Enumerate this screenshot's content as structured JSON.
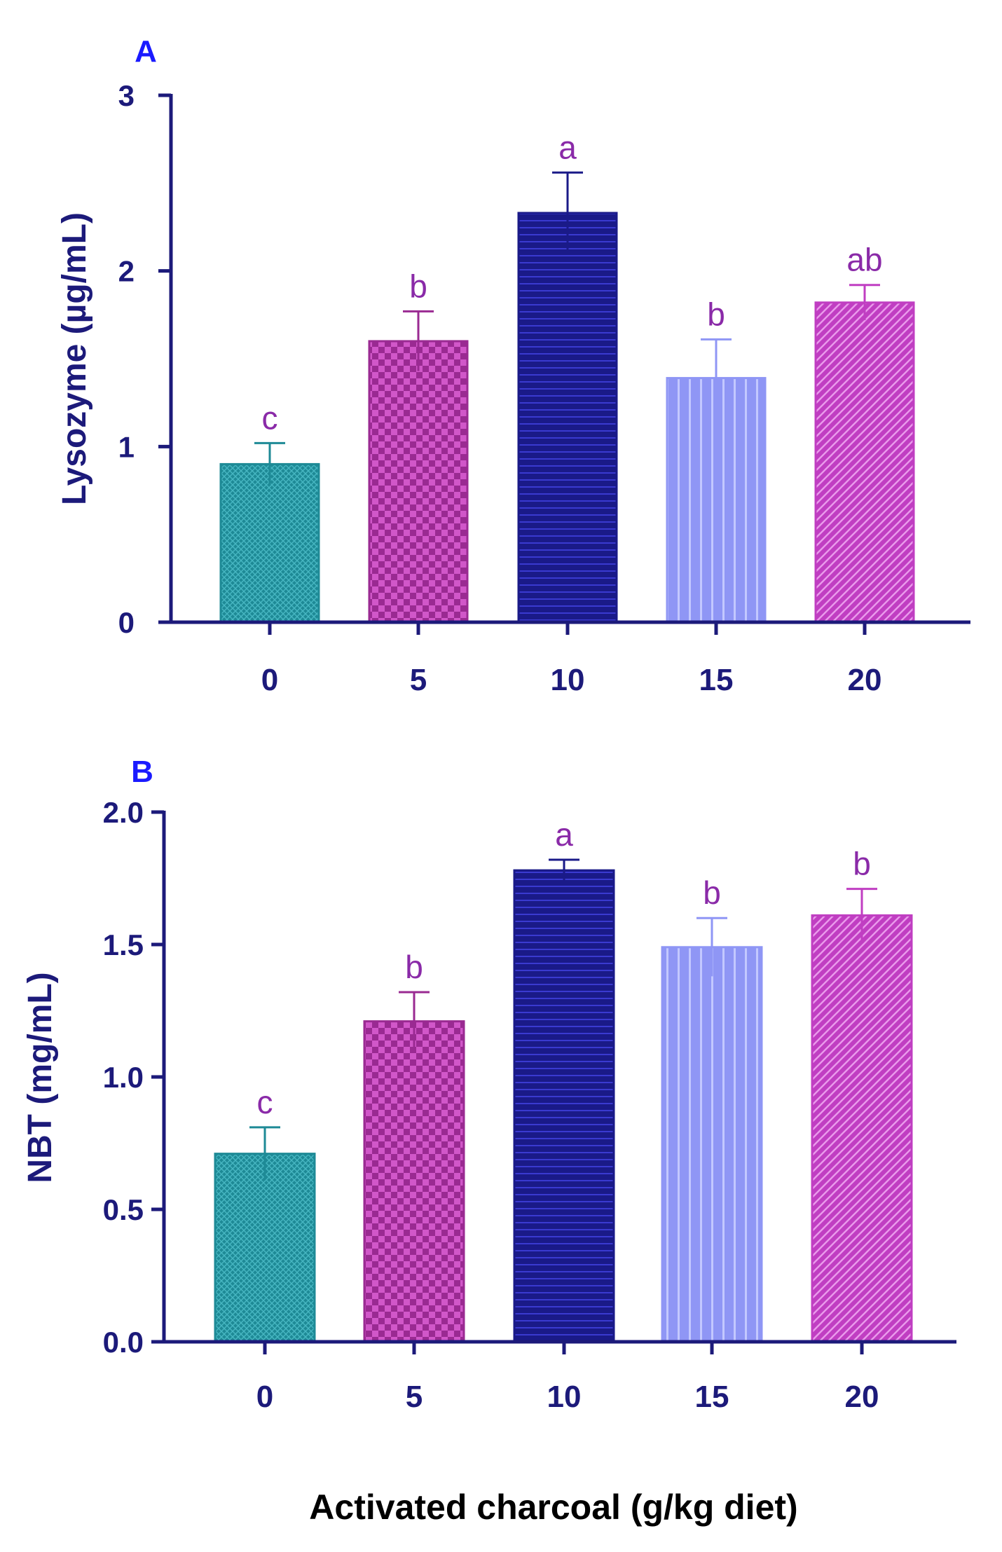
{
  "colors": {
    "axis": "#1c1a7a",
    "panel_label": "#1a1aff",
    "sig_letter": "#8a2aa8",
    "bar_colors": [
      "#1e8a96",
      "#9a2a92",
      "#1a1a88",
      "#8f96f5",
      "#c03ec2"
    ],
    "pattern_light": [
      "#47b7c2",
      "#d157c9",
      "#3a3ad0",
      "#c3c8ff",
      "#ea9aec"
    ],
    "pattern_names": [
      "crosshatch-fine",
      "checkerboard",
      "horizontal-lines",
      "vertical-lines",
      "diagonal-lines"
    ]
  },
  "xlabel": "Activated charcoal (g/kg diet)",
  "chart_data": [
    {
      "type": "bar",
      "panel_label": "A",
      "ylabel": "Lysozyme (µg/mL)",
      "categories": [
        "0",
        "5",
        "10",
        "15",
        "20"
      ],
      "values": [
        0.9,
        1.6,
        2.33,
        1.39,
        1.82
      ],
      "errors": [
        0.12,
        0.17,
        0.23,
        0.22,
        0.1
      ],
      "letters": [
        "c",
        "b",
        "a",
        "b",
        "ab"
      ],
      "ylim": [
        0,
        3
      ],
      "yticks": [
        0,
        1,
        2,
        3
      ],
      "ytick_labels": [
        "0",
        "1",
        "2",
        "3"
      ]
    },
    {
      "type": "bar",
      "panel_label": "B",
      "ylabel": "NBT (mg/mL)",
      "categories": [
        "0",
        "5",
        "10",
        "15",
        "20"
      ],
      "values": [
        0.71,
        1.21,
        1.78,
        1.49,
        1.61
      ],
      "errors": [
        0.1,
        0.11,
        0.04,
        0.11,
        0.1
      ],
      "letters": [
        "c",
        "b",
        "a",
        "b",
        "b"
      ],
      "ylim": [
        0,
        2
      ],
      "yticks": [
        0,
        0.5,
        1,
        1.5,
        2
      ],
      "ytick_labels": [
        "0.0",
        "0.5",
        "1.0",
        "1.5",
        "2.0"
      ]
    }
  ]
}
